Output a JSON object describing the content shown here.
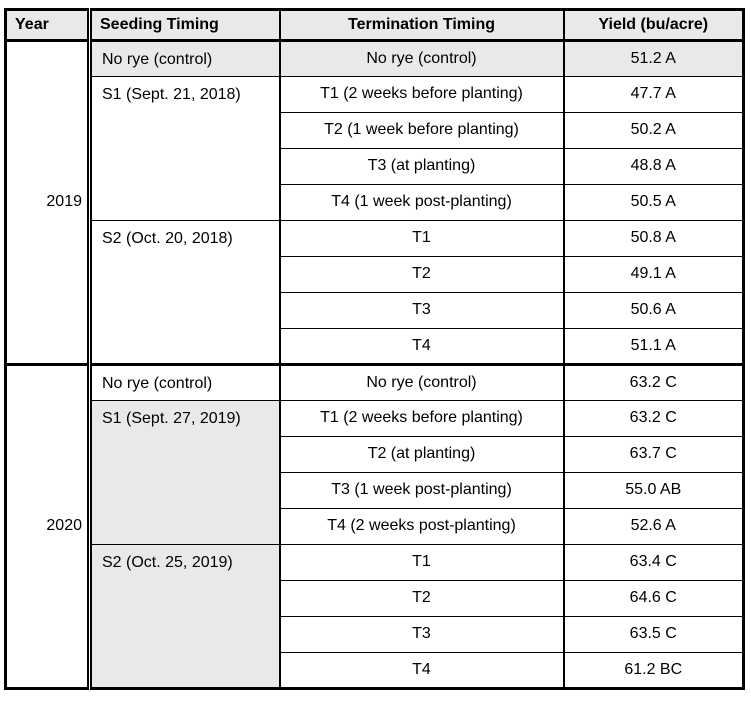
{
  "colors": {
    "header_bg": "#e9e9e9",
    "shaded_cell_bg": "#e9e9e9",
    "border": "#000000",
    "text": "#000000",
    "page_bg": "#ffffff"
  },
  "chart_data": {
    "type": "table",
    "columns": [
      "Year",
      "Seeding Timing",
      "Termination Timing",
      "Yield (bu/acre)"
    ],
    "years": [
      {
        "label": "2019",
        "groups": [
          {
            "seeding": "No rye (control)",
            "rows": [
              {
                "termination": "No rye (control)",
                "yield": "51.2 A"
              }
            ]
          },
          {
            "seeding": "S1 (Sept. 21, 2018)",
            "rows": [
              {
                "termination": "T1 (2 weeks before planting)",
                "yield": "47.7 A"
              },
              {
                "termination": "T2 (1 week before planting)",
                "yield": "50.2 A"
              },
              {
                "termination": "T3 (at planting)",
                "yield": "48.8 A"
              },
              {
                "termination": "T4 (1 week post-planting)",
                "yield": "50.5 A"
              }
            ]
          },
          {
            "seeding": "S2 (Oct. 20, 2018)",
            "rows": [
              {
                "termination": "T1",
                "yield": "50.8 A"
              },
              {
                "termination": "T2",
                "yield": "49.1 A"
              },
              {
                "termination": "T3",
                "yield": "50.6 A"
              },
              {
                "termination": "T4",
                "yield": "51.1 A"
              }
            ]
          }
        ]
      },
      {
        "label": "2020",
        "groups": [
          {
            "seeding": "No rye (control)",
            "rows": [
              {
                "termination": "No rye (control)",
                "yield": "63.2 C"
              }
            ]
          },
          {
            "seeding": "S1 (Sept. 27, 2019)",
            "rows": [
              {
                "termination": "T1 (2 weeks before planting)",
                "yield": "63.2 C"
              },
              {
                "termination": "T2 (at planting)",
                "yield": "63.7 C"
              },
              {
                "termination": "T3 (1 week post-planting)",
                "yield": "55.0 AB"
              },
              {
                "termination": "T4 (2 weeks post-planting)",
                "yield": "52.6 A"
              }
            ]
          },
          {
            "seeding": "S2 (Oct. 25, 2019)",
            "rows": [
              {
                "termination": "T1",
                "yield": "63.4 C"
              },
              {
                "termination": "T2",
                "yield": "64.6 C"
              },
              {
                "termination": "T3",
                "yield": "63.5 C"
              },
              {
                "termination": "T4",
                "yield": "61.2 BC"
              }
            ]
          }
        ]
      }
    ],
    "rows": [
      [
        "2019",
        "No rye (control)",
        "No rye (control)",
        "51.2 A"
      ],
      [
        "2019",
        "S1 (Sept. 21, 2018)",
        "T1 (2 weeks before planting)",
        "47.7 A"
      ],
      [
        "2019",
        "S1 (Sept. 21, 2018)",
        "T2 (1 week before planting)",
        "50.2 A"
      ],
      [
        "2019",
        "S1 (Sept. 21, 2018)",
        "T3 (at planting)",
        "48.8 A"
      ],
      [
        "2019",
        "S1 (Sept. 21, 2018)",
        "T4 (1 week post-planting)",
        "50.5 A"
      ],
      [
        "2019",
        "S2 (Oct. 20, 2018)",
        "T1",
        "50.8 A"
      ],
      [
        "2019",
        "S2 (Oct. 20, 2018)",
        "T2",
        "49.1 A"
      ],
      [
        "2019",
        "S2 (Oct. 20, 2018)",
        "T3",
        "50.6 A"
      ],
      [
        "2019",
        "S2 (Oct. 20, 2018)",
        "T4",
        "51.1 A"
      ],
      [
        "2020",
        "No rye (control)",
        "No rye (control)",
        "63.2 C"
      ],
      [
        "2020",
        "S1 (Sept. 27, 2019)",
        "T1 (2 weeks before planting)",
        "63.2 C"
      ],
      [
        "2020",
        "S1 (Sept. 27, 2019)",
        "T2 (at planting)",
        "63.7 C"
      ],
      [
        "2020",
        "S1 (Sept. 27, 2019)",
        "T3 (1 week post-planting)",
        "55.0 AB"
      ],
      [
        "2020",
        "S1 (Sept. 27, 2019)",
        "T4 (2 weeks post-planting)",
        "52.6 A"
      ],
      [
        "2020",
        "S2 (Oct. 25, 2019)",
        "T1",
        "63.4 C"
      ],
      [
        "2020",
        "S2 (Oct. 25, 2019)",
        "T2",
        "64.6 C"
      ],
      [
        "2020",
        "S2 (Oct. 25, 2019)",
        "T3",
        "63.5 C"
      ],
      [
        "2020",
        "S2 (Oct. 25, 2019)",
        "T4",
        "61.2 BC"
      ]
    ]
  }
}
